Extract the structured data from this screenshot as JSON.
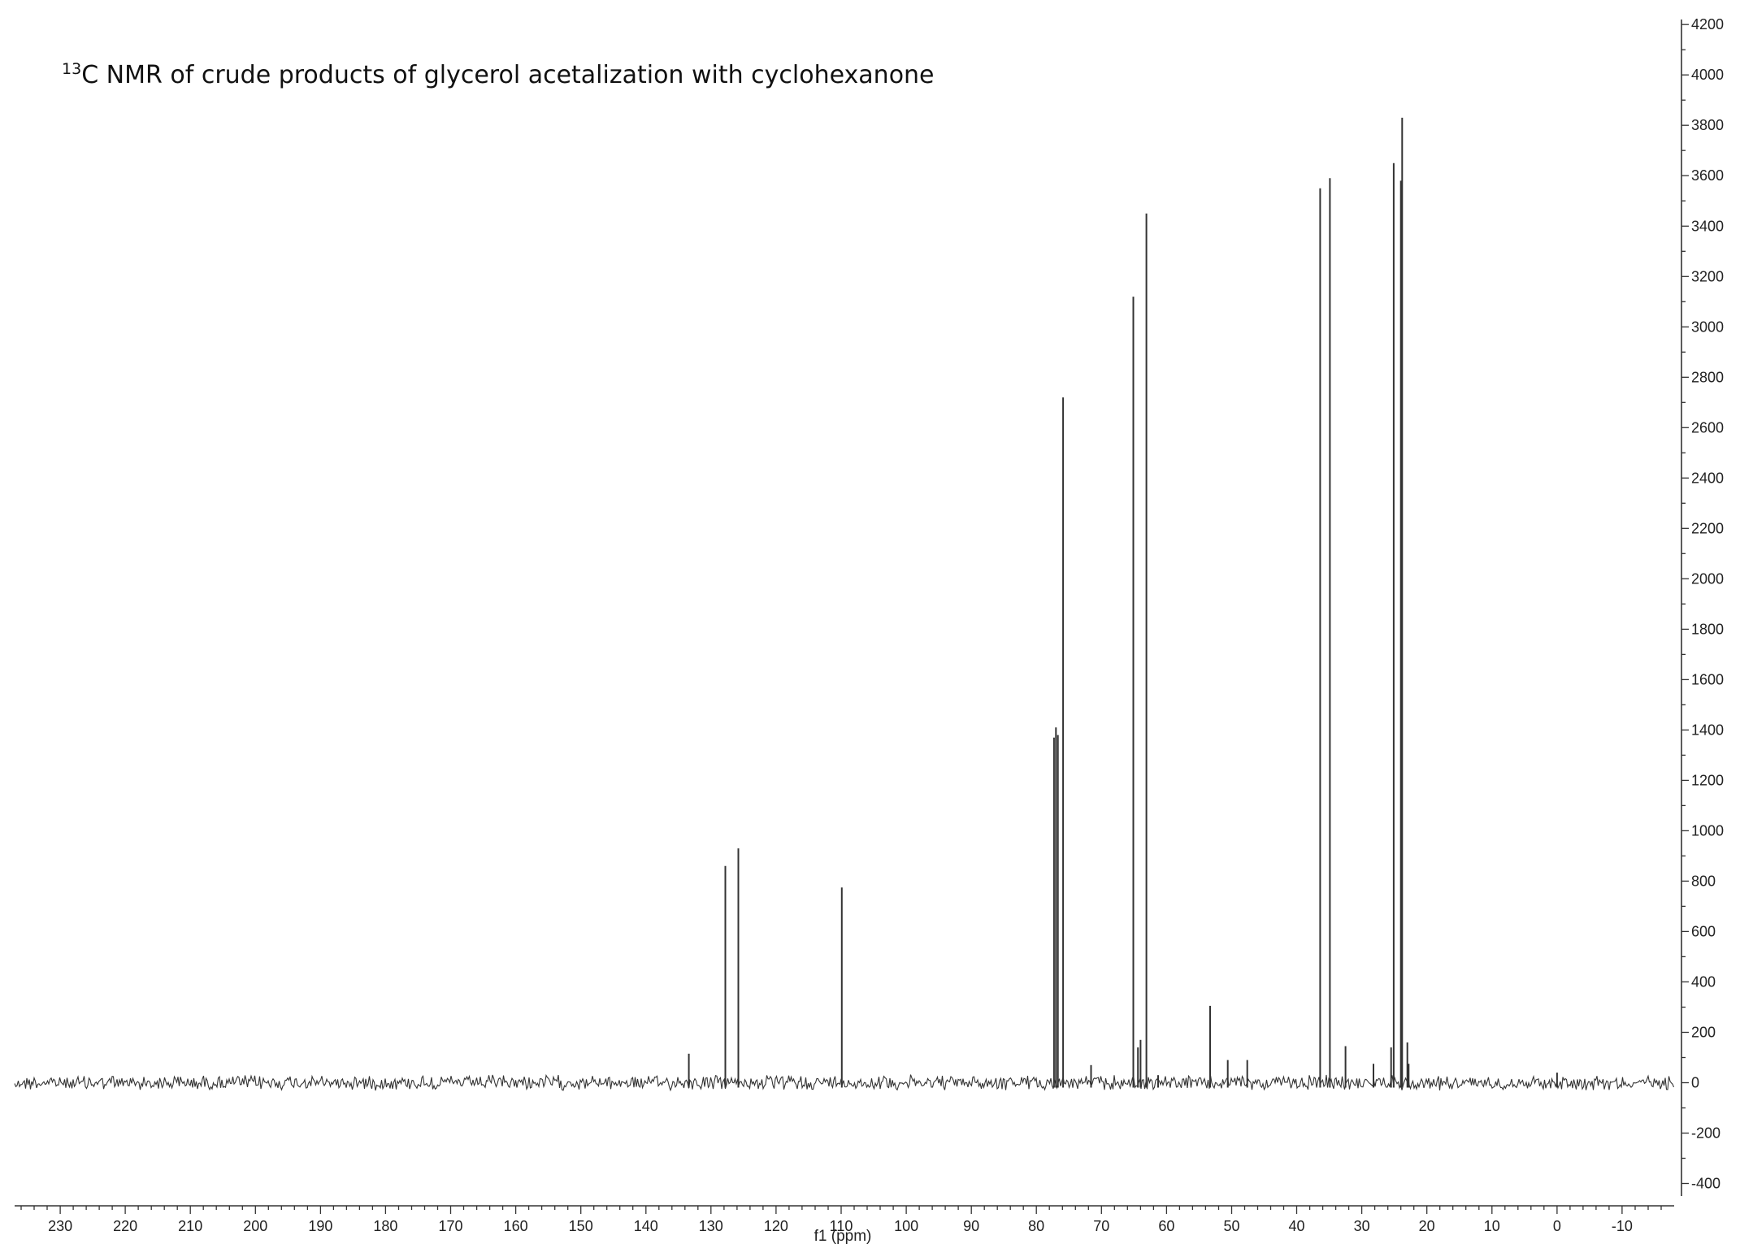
{
  "chart_data": {
    "type": "line",
    "title_superscript": "13",
    "title_rest": "C NMR of crude products of glycerol acetalization with cyclohexanone",
    "xlabel": "f1 (ppm)",
    "ylabel": "",
    "x_reversed": true,
    "xlim": [
      237,
      -18
    ],
    "ylim": [
      -450,
      4220
    ],
    "x_ticks": [
      230,
      220,
      210,
      200,
      190,
      180,
      170,
      160,
      150,
      140,
      130,
      120,
      110,
      100,
      90,
      80,
      70,
      60,
      50,
      40,
      30,
      20,
      10,
      0,
      -10
    ],
    "x_tick_labels": [
      "230",
      "220",
      "210",
      "200",
      "190",
      "180",
      "170",
      "160",
      "150",
      "140",
      "130",
      "120",
      "110",
      "100",
      "90",
      "80",
      "70",
      "60",
      "50",
      "40",
      "30",
      "20",
      "10",
      "0",
      "-10"
    ],
    "y_ticks": [
      -400,
      -200,
      0,
      200,
      400,
      600,
      800,
      1000,
      1200,
      1400,
      1600,
      1800,
      2000,
      2200,
      2400,
      2600,
      2800,
      3000,
      3200,
      3400,
      3600,
      3800,
      4000,
      4200
    ],
    "y_tick_labels": [
      "-400",
      "-200",
      "0",
      "200",
      "400",
      "600",
      "800",
      "1000",
      "1200",
      "1400",
      "1600",
      "1800",
      "2000",
      "2200",
      "2400",
      "2600",
      "2800",
      "3000",
      "3200",
      "3400",
      "3600",
      "3800",
      "4000",
      "4200"
    ],
    "y_axis_side": "right",
    "grid": false,
    "line_color": "#333333",
    "peaks": [
      {
        "ppm": 133.4,
        "intensity": 115
      },
      {
        "ppm": 127.8,
        "intensity": 860
      },
      {
        "ppm": 125.8,
        "intensity": 930
      },
      {
        "ppm": 109.9,
        "intensity": 775
      },
      {
        "ppm": 77.3,
        "intensity": 1370
      },
      {
        "ppm": 77.0,
        "intensity": 1410
      },
      {
        "ppm": 76.7,
        "intensity": 1380
      },
      {
        "ppm": 75.9,
        "intensity": 2720
      },
      {
        "ppm": 71.6,
        "intensity": 70
      },
      {
        "ppm": 65.1,
        "intensity": 3120
      },
      {
        "ppm": 64.4,
        "intensity": 140
      },
      {
        "ppm": 64.0,
        "intensity": 170
      },
      {
        "ppm": 63.1,
        "intensity": 3450
      },
      {
        "ppm": 61.3,
        "intensity": 30
      },
      {
        "ppm": 53.3,
        "intensity": 305
      },
      {
        "ppm": 50.6,
        "intensity": 90
      },
      {
        "ppm": 47.6,
        "intensity": 90
      },
      {
        "ppm": 36.4,
        "intensity": 3550
      },
      {
        "ppm": 34.9,
        "intensity": 3590
      },
      {
        "ppm": 32.5,
        "intensity": 145
      },
      {
        "ppm": 28.2,
        "intensity": 75
      },
      {
        "ppm": 25.5,
        "intensity": 140
      },
      {
        "ppm": 25.1,
        "intensity": 3650
      },
      {
        "ppm": 24.0,
        "intensity": 3580
      },
      {
        "ppm": 23.8,
        "intensity": 3830
      },
      {
        "ppm": 23.0,
        "intensity": 160
      },
      {
        "ppm": 22.8,
        "intensity": 75
      },
      {
        "ppm": 0.0,
        "intensity": 40
      }
    ]
  }
}
